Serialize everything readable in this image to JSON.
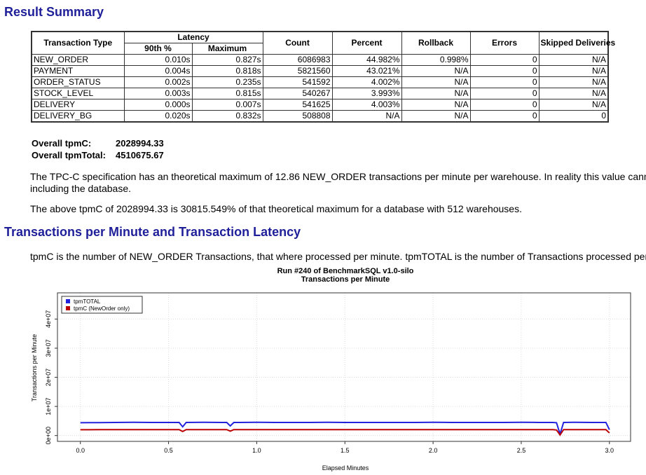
{
  "result_summary": {
    "heading": "Result Summary",
    "table": {
      "header_top": [
        "Transaction Type",
        "Latency",
        "Count",
        "Percent",
        "Rollback",
        "Errors",
        "Skipped Deliveries"
      ],
      "header_sub": [
        "90th %",
        "Maximum"
      ],
      "rows": [
        [
          "NEW_ORDER",
          "0.010s",
          "0.827s",
          "6086983",
          "44.982%",
          "0.998%",
          "0",
          "N/A"
        ],
        [
          "PAYMENT",
          "0.004s",
          "0.818s",
          "5821560",
          "43.021%",
          "N/A",
          "0",
          "N/A"
        ],
        [
          "ORDER_STATUS",
          "0.002s",
          "0.235s",
          "541592",
          "4.002%",
          "N/A",
          "0",
          "N/A"
        ],
        [
          "STOCK_LEVEL",
          "0.003s",
          "0.815s",
          "540267",
          "3.993%",
          "N/A",
          "0",
          "N/A"
        ],
        [
          "DELIVERY",
          "0.000s",
          "0.007s",
          "541625",
          "4.003%",
          "N/A",
          "0",
          "N/A"
        ],
        [
          "DELIVERY_BG",
          "0.020s",
          "0.832s",
          "508808",
          "N/A",
          "N/A",
          "0",
          "0"
        ]
      ]
    },
    "overall": [
      {
        "label": "Overall tpmC:",
        "value": "2028994.33"
      },
      {
        "label": "Overall tpmTotal:",
        "value": "4510675.67"
      }
    ],
    "paragraphs": [
      [
        "The TPC-C specification has an theoretical maximum of 12.86 NEW_ORDER transactions per minute per warehouse. In reality this value cann",
        "including the database."
      ],
      [
        "The above tpmC of 2028994.33 is 30815.549% of that theoretical maximum for a database with 512 warehouses."
      ]
    ]
  },
  "tpm_section": {
    "heading": "Transactions per Minute and Transaction Latency",
    "paragraph": "tpmC is the number of NEW_ORDER Transactions, that where processed per minute. tpmTOTAL is the number of Transactions processed per"
  },
  "chart_data": {
    "type": "line",
    "title": [
      "Run #240 of BenchmarkSQL v1.0-silo",
      "Transactions per Minute"
    ],
    "x_label": "Elapsed Minutes",
    "y_label": "Transactions per Minute",
    "x": [
      0,
      0.1,
      0.2,
      0.3,
      0.4,
      0.5,
      0.56,
      0.58,
      0.6,
      0.7,
      0.8,
      0.83,
      0.85,
      0.87,
      0.9,
      1.0,
      1.1,
      1.2,
      1.3,
      1.4,
      1.5,
      1.6,
      1.7,
      1.8,
      1.9,
      2.0,
      2.1,
      2.2,
      2.3,
      2.4,
      2.5,
      2.6,
      2.68,
      2.7,
      2.72,
      2.74,
      2.8,
      2.9,
      2.98,
      3.0
    ],
    "series": [
      {
        "name": "tpmTOTAL",
        "color": "#2222dd",
        "values": [
          4400000,
          4450000,
          4500000,
          4550000,
          4500000,
          4500000,
          4500000,
          3000000,
          4500000,
          4550000,
          4500000,
          4500000,
          3300000,
          4500000,
          4500000,
          4550000,
          4500000,
          4500000,
          4500000,
          4550000,
          4500000,
          4500000,
          4500000,
          4500000,
          4500000,
          4550000,
          4500000,
          4500000,
          4500000,
          4500000,
          4550000,
          4500000,
          4500000,
          4400000,
          500000,
          4500000,
          4550000,
          4500000,
          4500000,
          2000000
        ]
      },
      {
        "name": "tpmC (NewOrder only)",
        "color": "#bb0000",
        "values": [
          2000000,
          2020000,
          2030000,
          2040000,
          2030000,
          2030000,
          2030000,
          1400000,
          2030000,
          2040000,
          2030000,
          2030000,
          1500000,
          2030000,
          2030000,
          2040000,
          2030000,
          2030000,
          2030000,
          2040000,
          2030000,
          2030000,
          2030000,
          2030000,
          2030000,
          2040000,
          2030000,
          2030000,
          2030000,
          2030000,
          2040000,
          2030000,
          2030000,
          1900000,
          200000,
          2030000,
          2040000,
          2030000,
          2030000,
          900000
        ]
      }
    ],
    "xlim": [
      -0.13,
      3.12
    ],
    "ylim": [
      -2000000,
      49000000
    ],
    "xticks": [
      {
        "value": 0,
        "label": "0.0"
      },
      {
        "value": 0.5,
        "label": "0.5"
      },
      {
        "value": 1,
        "label": "1.0"
      },
      {
        "value": 1.5,
        "label": "1.5"
      },
      {
        "value": 2,
        "label": "2.0"
      },
      {
        "value": 2.5,
        "label": "2.5"
      },
      {
        "value": 3,
        "label": "3.0"
      }
    ],
    "yticks": [
      {
        "value": 0,
        "label": "0e+00"
      },
      {
        "value": 10000000,
        "label": "1e+07"
      },
      {
        "value": 20000000,
        "label": "2e+07"
      },
      {
        "value": 30000000,
        "label": "3e+07"
      },
      {
        "value": 40000000,
        "label": "4e+07"
      }
    ],
    "grid": true,
    "legend": "top-left"
  }
}
